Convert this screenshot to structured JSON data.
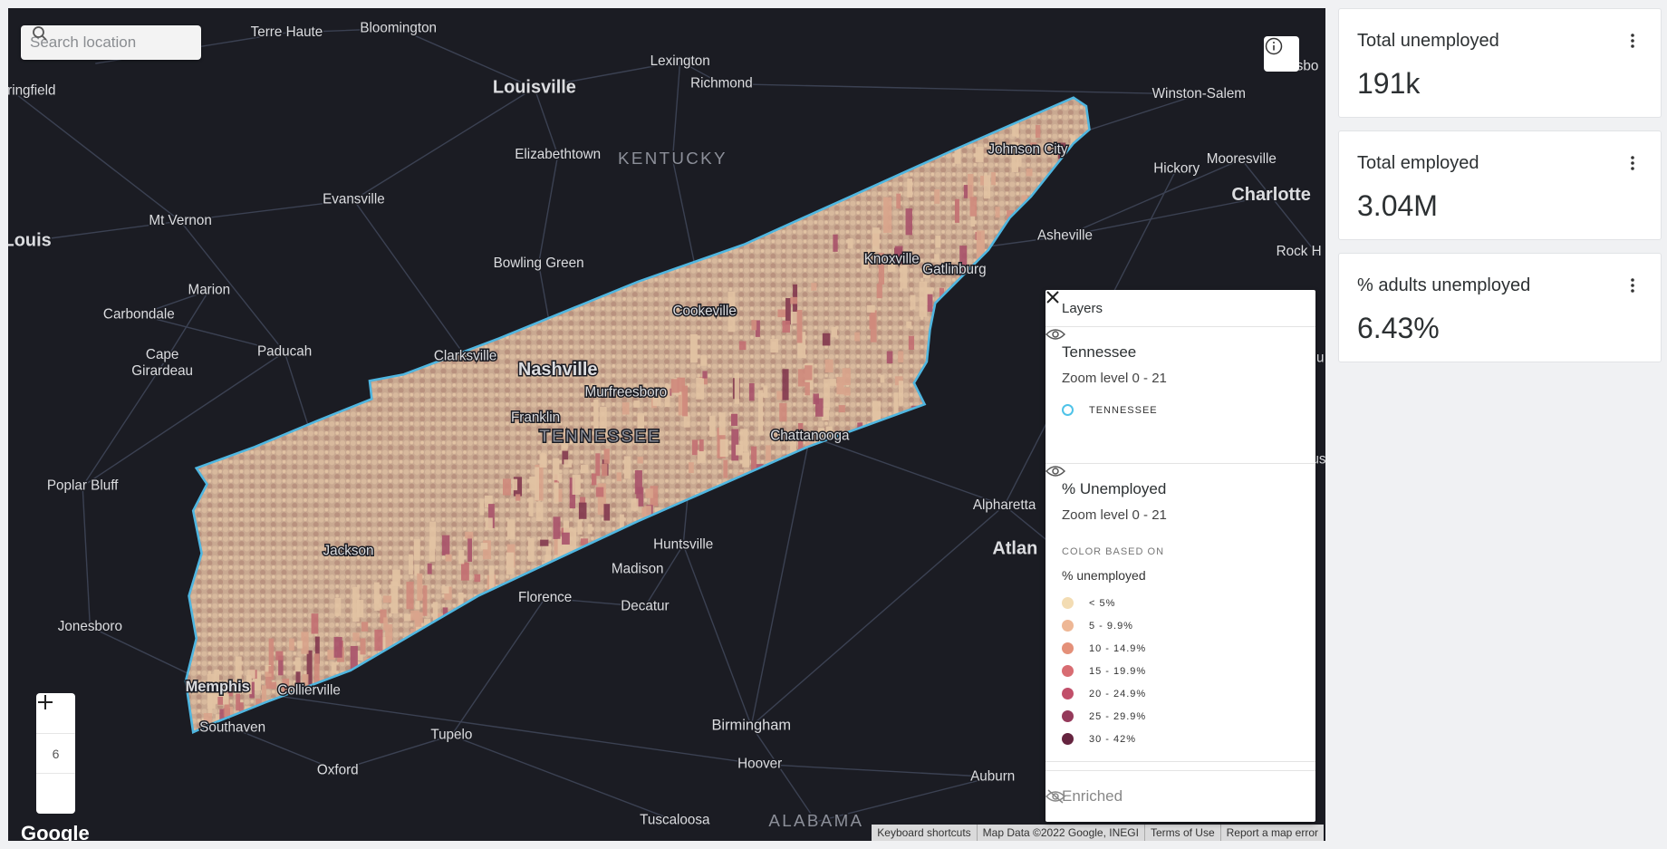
{
  "search": {
    "placeholder": "Search location"
  },
  "map": {
    "labels": [
      "Terre Haute",
      "Bloomington",
      "Lexington",
      "Richmond",
      "Louisville",
      "Winston-Salem",
      "ringfield",
      "Elizabethtown",
      "KENTUCKY",
      "Johnson City",
      "Hickory",
      "Mooresville",
      "Charlotte",
      "Evansville",
      "Mt Vernon",
      "Louis",
      "Asheville",
      "Bowling Green",
      "Knoxville",
      "Gatlinburg",
      "Rock H",
      "Marion",
      "Carbondale",
      "Cookeville",
      "Paducah",
      "Cape",
      "Girardeau",
      "Clarksville",
      "Nashville",
      "Murfreesboro",
      "Franklin",
      "TENNESSEE",
      "Chattanooga",
      "Poplar Bluff",
      "Alpharetta",
      "Atlan",
      "Huntsville",
      "Jackson",
      "Madison",
      "Florence",
      "Decatur",
      "Jonesboro",
      "Memphis",
      "Collierville",
      "Southaven",
      "Tupelo",
      "Birmingham",
      "Hoover",
      "Oxford",
      "Auburn",
      "Tuscaloosa",
      "ALABAMA",
      "sbo",
      "olu",
      "gus"
    ],
    "zoom_level": 6,
    "logo": "Google",
    "attribution": [
      "Keyboard shortcuts",
      "Map Data ©2022 Google, INEGI",
      "Terms of Use",
      "Report a map error"
    ]
  },
  "layers_panel": {
    "title": "Layers",
    "layers": [
      {
        "name": "Tennessee",
        "zoom": "Zoom level 0 - 21",
        "legend": [
          {
            "label": "TENNESSEE",
            "color": "#4fc3e8"
          }
        ]
      },
      {
        "name": "% Unemployed",
        "zoom": "Zoom level 0 - 21",
        "color_based_on_heading": "COLOR BASED ON",
        "color_based_on": "% unemployed",
        "legend": [
          {
            "label": "< 5%",
            "color": "#f3dcb3"
          },
          {
            "label": "5 - 9.9%",
            "color": "#eeb795"
          },
          {
            "label": "10 - 14.9%",
            "color": "#e49079"
          },
          {
            "label": "15 - 19.9%",
            "color": "#d86c72"
          },
          {
            "label": "20 - 24.9%",
            "color": "#c14f6a"
          },
          {
            "label": "25 - 29.9%",
            "color": "#953a5b"
          },
          {
            "label": "30 - 42%",
            "color": "#65243f"
          }
        ]
      },
      {
        "name": "Enriched"
      }
    ]
  },
  "widgets": [
    {
      "title": "Total unemployed",
      "value": "191k"
    },
    {
      "title": "Total employed",
      "value": "3.04M"
    },
    {
      "title": "% adults unemployed",
      "value": "6.43%"
    }
  ]
}
